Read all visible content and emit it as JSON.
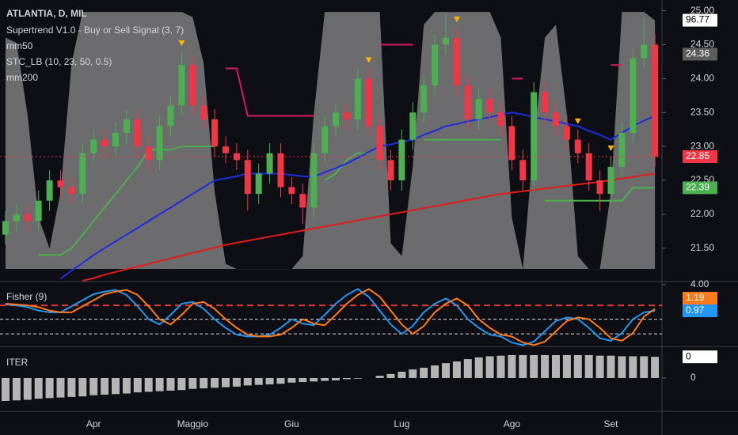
{
  "chart_data": [
    {
      "type": "candlestick",
      "title": "ATLANTIA, D, MIL",
      "categories": [
        null,
        null,
        null,
        null,
        null,
        null,
        null,
        null,
        "Apr",
        null,
        null,
        null,
        null,
        null,
        null,
        null,
        null,
        "Maggio",
        null,
        null,
        null,
        null,
        null,
        null,
        null,
        null,
        "Giu",
        null,
        null,
        null,
        null,
        null,
        null,
        null,
        null,
        null,
        "Lug",
        null,
        null,
        null,
        null,
        null,
        null,
        null,
        null,
        null,
        "Ago",
        null,
        null,
        null,
        null,
        null,
        null,
        null,
        null,
        "Set",
        null,
        null,
        null,
        null
      ],
      "candles": {
        "up_color": "#4caf50",
        "down_color": "#f23645",
        "open": [
          21.7,
          21.9,
          22.0,
          21.9,
          22.2,
          22.5,
          22.4,
          22.3,
          22.9,
          23.1,
          23.0,
          23.2,
          23.4,
          23.0,
          22.8,
          23.3,
          23.6,
          24.2,
          23.6,
          23.4,
          23.0,
          22.9,
          22.8,
          22.3,
          22.6,
          22.9,
          22.4,
          22.3,
          22.1,
          22.9,
          23.3,
          23.5,
          23.4,
          24.0,
          23.3,
          22.8,
          22.5,
          23.1,
          23.5,
          23.9,
          24.5,
          24.6,
          23.9,
          23.4,
          23.7,
          23.5,
          23.3,
          22.8,
          22.5,
          23.8,
          23.5,
          23.3,
          23.1,
          22.9,
          22.5,
          22.3,
          22.7,
          23.2,
          24.3,
          24.5
        ],
        "high": [
          22.05,
          22.15,
          22.15,
          22.35,
          22.65,
          22.65,
          22.55,
          23.05,
          23.25,
          23.25,
          23.35,
          23.55,
          23.55,
          23.15,
          23.45,
          23.75,
          24.4,
          24.35,
          23.75,
          23.55,
          23.15,
          23.05,
          22.95,
          22.75,
          23.05,
          23.05,
          22.55,
          22.45,
          23.05,
          23.45,
          23.65,
          23.65,
          24.15,
          24.15,
          23.45,
          22.95,
          23.25,
          23.65,
          24.05,
          24.65,
          24.95,
          24.75,
          24.05,
          23.85,
          23.85,
          23.65,
          23.45,
          22.95,
          23.95,
          23.95,
          23.65,
          23.45,
          23.25,
          23.05,
          22.65,
          22.85,
          23.35,
          24.45,
          24.9,
          24.65
        ],
        "low": [
          21.55,
          21.75,
          21.75,
          21.75,
          22.05,
          22.25,
          22.15,
          22.15,
          22.75,
          22.85,
          22.85,
          23.05,
          22.85,
          22.65,
          22.65,
          23.15,
          23.45,
          23.45,
          23.25,
          22.85,
          22.75,
          22.65,
          22.05,
          22.15,
          22.45,
          22.25,
          22.15,
          21.85,
          21.95,
          22.75,
          23.15,
          23.25,
          23.25,
          23.15,
          22.65,
          22.35,
          22.35,
          22.95,
          23.35,
          23.75,
          24.35,
          23.75,
          23.25,
          23.25,
          23.35,
          23.15,
          22.65,
          22.35,
          22.35,
          23.35,
          23.15,
          22.95,
          22.75,
          22.35,
          22.05,
          22.15,
          22.55,
          23.05,
          24.15,
          22.7
        ],
        "close": [
          21.9,
          22.0,
          21.9,
          22.2,
          22.5,
          22.4,
          22.3,
          22.9,
          23.1,
          23.0,
          23.2,
          23.4,
          23.0,
          22.8,
          23.3,
          23.6,
          24.2,
          23.6,
          23.4,
          23.0,
          22.9,
          22.8,
          22.3,
          22.6,
          22.9,
          22.4,
          22.3,
          22.1,
          22.9,
          23.3,
          23.5,
          23.4,
          24.0,
          23.3,
          22.8,
          22.5,
          23.1,
          23.5,
          23.9,
          24.5,
          24.6,
          23.9,
          23.4,
          23.7,
          23.5,
          23.3,
          22.8,
          22.5,
          23.8,
          23.5,
          23.3,
          23.1,
          22.9,
          22.5,
          22.3,
          22.7,
          23.2,
          24.3,
          24.5,
          22.85
        ]
      },
      "series": [
        {
          "name": "Supertrend V1.0 - Buy or Sell Signal (3, 7)",
          "color": "#4caf50",
          "color_down": "#d81b60",
          "signal_color": "#ffb300",
          "values": [
            null,
            null,
            null,
            21.4,
            21.4,
            21.4,
            21.5,
            21.7,
            21.9,
            22.1,
            22.3,
            22.5,
            22.7,
            22.95,
            22.95,
            22.95,
            23.0,
            23.0,
            23.0,
            23.0,
            null,
            null,
            null,
            null,
            null,
            null,
            null,
            null,
            null,
            22.5,
            22.6,
            22.8,
            22.9,
            22.9,
            null,
            null,
            null,
            null,
            23.1,
            23.1,
            23.1,
            23.1,
            23.1,
            23.1,
            23.1,
            23.1,
            null,
            null,
            null,
            22.2,
            22.2,
            22.2,
            22.2,
            22.2,
            22.2,
            22.2,
            22.2,
            22.39,
            22.39,
            22.39
          ],
          "values_down": [
            null,
            null,
            null,
            null,
            null,
            null,
            null,
            null,
            null,
            null,
            null,
            null,
            null,
            null,
            null,
            null,
            null,
            null,
            null,
            null,
            24.15,
            24.15,
            23.45,
            23.45,
            23.45,
            23.45,
            23.45,
            23.45,
            23.45,
            null,
            null,
            null,
            null,
            null,
            24.5,
            24.5,
            24.5,
            24.5,
            null,
            null,
            null,
            null,
            null,
            null,
            null,
            null,
            24.0,
            24.0,
            null,
            null,
            null,
            null,
            null,
            null,
            null,
            24.2,
            24.2,
            null,
            null,
            null
          ],
          "signals": [
            16,
            33,
            41,
            52,
            55
          ]
        },
        {
          "name": "mm50",
          "color": "#1e2be0",
          "values": [
            null,
            null,
            null,
            null,
            null,
            21.05,
            21.17,
            21.28,
            21.4,
            21.5,
            21.6,
            21.7,
            21.8,
            21.9,
            22.0,
            22.1,
            22.2,
            22.3,
            22.4,
            22.5,
            22.53,
            22.56,
            22.6,
            22.6,
            22.6,
            22.6,
            22.58,
            22.56,
            22.55,
            22.62,
            22.68,
            22.75,
            22.83,
            22.92,
            23.0,
            23.03,
            23.07,
            23.1,
            23.17,
            23.23,
            23.3,
            23.33,
            23.37,
            23.4,
            23.43,
            23.47,
            23.5,
            23.47,
            23.43,
            23.4,
            23.37,
            23.33,
            23.3,
            23.23,
            23.17,
            23.1,
            23.2,
            23.3,
            23.38,
            23.45
          ]
        },
        {
          "name": "STC_LB (10, 23, 50, 0.5)",
          "color": "#8c8c8c",
          "axis": "y2",
          "style": "area",
          "values": [
            90,
            88,
            60,
            20,
            8,
            30,
            80,
            100,
            100,
            100,
            100,
            100,
            100,
            100,
            100,
            100,
            100,
            98,
            80,
            30,
            2,
            0,
            0,
            0,
            0,
            0,
            0,
            5,
            60,
            100,
            100,
            100,
            100,
            100,
            100,
            10,
            5,
            40,
            95,
            100,
            100,
            100,
            100,
            100,
            100,
            90,
            20,
            0,
            50,
            90,
            95,
            60,
            5,
            0,
            0,
            30,
            100,
            100,
            100,
            96.77
          ]
        },
        {
          "name": "mm200",
          "color": "#e31b1b",
          "values": [
            null,
            null,
            null,
            null,
            null,
            null,
            null,
            21.02,
            21.06,
            21.11,
            21.15,
            21.19,
            21.23,
            21.27,
            21.31,
            21.35,
            21.39,
            21.43,
            21.47,
            21.51,
            21.55,
            21.58,
            21.61,
            21.64,
            21.67,
            21.7,
            21.73,
            21.76,
            21.79,
            21.82,
            21.85,
            21.88,
            21.91,
            21.94,
            21.97,
            22.0,
            22.03,
            22.06,
            22.09,
            22.12,
            22.15,
            22.18,
            22.21,
            22.24,
            22.27,
            22.3,
            22.32,
            22.34,
            22.36,
            22.38,
            22.4,
            22.42,
            22.44,
            22.46,
            22.48,
            22.5,
            22.53,
            22.55,
            22.58,
            22.6
          ]
        }
      ],
      "markers": [
        {
          "value": 24.36,
          "color": "#5d5d5d"
        }
      ],
      "ylim": [
        21.02,
        25.1
      ],
      "yticks": [
        {
          "value": 21.5,
          "label": "21.50"
        },
        {
          "value": 22,
          "label": "22.00"
        },
        {
          "value": 22.5,
          "label": "22.50"
        },
        {
          "value": 23,
          "label": "23.00"
        },
        {
          "value": 23.5,
          "label": "23.50"
        },
        {
          "value": 24,
          "label": "24.00"
        },
        {
          "value": 24.5,
          "label": "24.50"
        },
        {
          "value": 25,
          "label": "25.00"
        }
      ],
      "y2lim": [
        -4.6,
        103.1
      ]
    },
    {
      "type": "line",
      "title": "Fisher (9)",
      "series": [
        {
          "color": "#2196f3",
          "values": [
            1.7,
            1.6,
            1.4,
            1.0,
            0.8,
            0.8,
            1.5,
            2.2,
            2.9,
            3.2,
            3.4,
            2.8,
            1.5,
            0.0,
            -0.6,
            0.5,
            1.8,
            2.0,
            1.2,
            0.0,
            -1.0,
            -1.8,
            -2.0,
            -2.0,
            -1.8,
            -1.0,
            0.0,
            -0.5,
            -0.7,
            0.5,
            1.8,
            2.8,
            3.5,
            2.6,
            1.0,
            -0.6,
            -1.7,
            -0.8,
            0.8,
            1.8,
            2.4,
            1.6,
            0.0,
            -1.0,
            -1.8,
            -2.0,
            -2.7,
            -3.0,
            -2.6,
            -1.4,
            -0.2,
            0.2,
            0.0,
            -1.0,
            -2.2,
            -2.5,
            -1.6,
            0.0,
            0.8,
            0.97
          ]
        },
        {
          "color": "#ff7a1a",
          "values": [
            1.8,
            1.7,
            1.6,
            1.4,
            1.0,
            0.8,
            0.8,
            1.5,
            2.2,
            2.9,
            3.2,
            3.4,
            2.8,
            1.5,
            0.0,
            -0.6,
            0.5,
            1.8,
            2.0,
            1.2,
            0.0,
            -1.0,
            -1.8,
            -2.0,
            -2.0,
            -1.8,
            -1.0,
            0.0,
            -0.5,
            -0.7,
            0.5,
            1.8,
            2.8,
            3.5,
            2.6,
            1.0,
            -0.6,
            -1.7,
            -0.8,
            0.8,
            1.8,
            2.4,
            1.6,
            0.0,
            -1.0,
            -1.8,
            -2.0,
            -2.7,
            -3.0,
            -2.6,
            -1.4,
            -0.2,
            0.2,
            0.0,
            -1.0,
            -2.2,
            -2.5,
            -1.6,
            0.3,
            1.19
          ]
        }
      ],
      "levels": [
        1.6,
        0,
        -1.7
      ],
      "level_colors": [
        "#e53935",
        "#dddddd",
        "#dddddd"
      ],
      "ylim": [
        -3.06,
        4.27
      ],
      "yticks": [
        {
          "value": 4,
          "label": "4.00"
        }
      ]
    },
    {
      "type": "bar",
      "title": "ITER",
      "color": "#b5b5b5",
      "values": [
        -0.4,
        -0.39,
        -0.38,
        -0.36,
        -0.35,
        -0.34,
        -0.33,
        -0.32,
        -0.3,
        -0.29,
        -0.28,
        -0.27,
        -0.25,
        -0.24,
        -0.23,
        -0.22,
        -0.21,
        -0.19,
        -0.18,
        -0.17,
        -0.16,
        -0.15,
        -0.13,
        -0.12,
        -0.11,
        -0.1,
        -0.08,
        -0.07,
        -0.06,
        -0.05,
        -0.04,
        -0.02,
        -0.01,
        0,
        0.04,
        0.07,
        0.11,
        0.15,
        0.18,
        0.22,
        0.26,
        0.29,
        0.33,
        0.36,
        0.38,
        0.39,
        0.4,
        0.4,
        0.4,
        0.4,
        0.4,
        0.4,
        0.4,
        0.4,
        0.39,
        0.39,
        0.38,
        0.38,
        0.38,
        0.37
      ],
      "value_labels": [
        null,
        null,
        null,
        null,
        null,
        null,
        null,
        null,
        null,
        null,
        null,
        null,
        null,
        null,
        null,
        null,
        null,
        null,
        null,
        null,
        null,
        null,
        null,
        null,
        null,
        null,
        null,
        null,
        null,
        null,
        null,
        null,
        null,
        null,
        null,
        null,
        null,
        null,
        null,
        null,
        null,
        null,
        null,
        null,
        null,
        null,
        null,
        null,
        null,
        null,
        null,
        null,
        null,
        null,
        null,
        null,
        null,
        null,
        null,
        "0"
      ],
      "ylim": [
        -0.58,
        0.524
      ],
      "yticks": [
        0
      ]
    }
  ]
}
